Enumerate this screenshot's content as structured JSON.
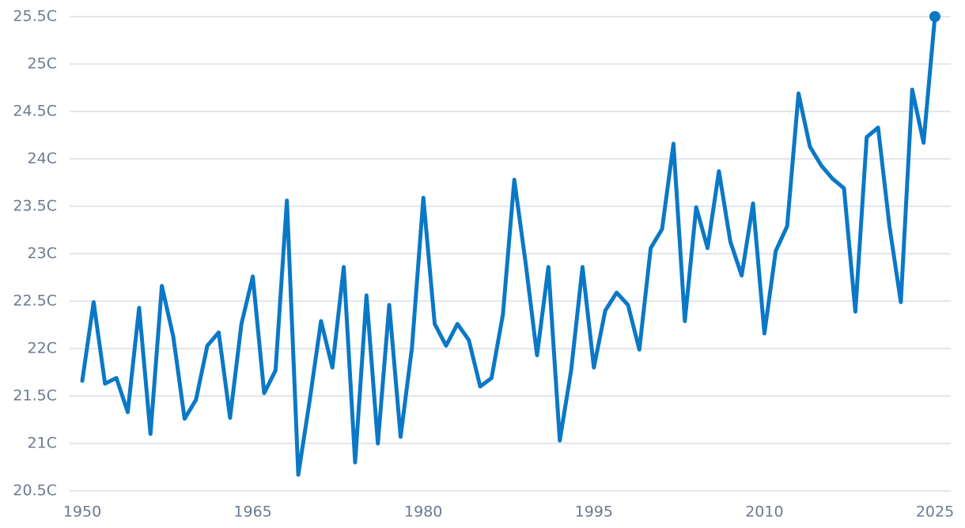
{
  "chart_data": {
    "type": "line",
    "x": [
      1950,
      1951,
      1952,
      1953,
      1954,
      1955,
      1956,
      1957,
      1958,
      1959,
      1960,
      1961,
      1962,
      1963,
      1964,
      1965,
      1966,
      1967,
      1968,
      1969,
      1970,
      1971,
      1972,
      1973,
      1974,
      1975,
      1976,
      1977,
      1978,
      1979,
      1980,
      1981,
      1982,
      1983,
      1984,
      1985,
      1986,
      1987,
      1988,
      1989,
      1990,
      1991,
      1992,
      1993,
      1994,
      1995,
      1996,
      1997,
      1998,
      1999,
      2000,
      2001,
      2002,
      2003,
      2004,
      2005,
      2006,
      2007,
      2008,
      2009,
      2010,
      2011,
      2012,
      2013,
      2014,
      2015,
      2016,
      2017,
      2018,
      2019,
      2020,
      2021,
      2022,
      2023,
      2024,
      2025
    ],
    "values": [
      21.66,
      22.49,
      21.63,
      21.69,
      21.33,
      22.43,
      21.1,
      22.66,
      22.13,
      21.26,
      21.46,
      22.03,
      22.17,
      21.27,
      22.26,
      22.76,
      21.53,
      21.77,
      23.56,
      20.67,
      21.45,
      22.29,
      21.8,
      22.86,
      20.8,
      22.56,
      21.0,
      22.46,
      21.07,
      22.01,
      23.59,
      22.26,
      22.03,
      22.26,
      22.09,
      21.6,
      21.69,
      22.36,
      23.78,
      22.9,
      21.93,
      22.86,
      21.03,
      21.77,
      22.86,
      21.8,
      22.4,
      22.59,
      22.46,
      21.99,
      23.06,
      23.26,
      24.16,
      22.29,
      23.49,
      23.06,
      23.87,
      23.13,
      22.77,
      23.53,
      22.16,
      23.03,
      23.29,
      24.69,
      24.13,
      23.93,
      23.79,
      23.69,
      22.39,
      24.23,
      24.33,
      23.29,
      22.49,
      24.73,
      24.17,
      25.5
    ],
    "color": "#0b78c6",
    "end_marker": true,
    "xlim": [
      1950,
      2025
    ],
    "xticks": [
      1950,
      1965,
      1980,
      1995,
      2010,
      2025
    ],
    "ylim": [
      20.5,
      25.5
    ],
    "yticks": [
      {
        "value": 20.5,
        "label": "20.5C"
      },
      {
        "value": 21,
        "label": "21C"
      },
      {
        "value": 21.5,
        "label": "21.5C"
      },
      {
        "value": 22,
        "label": "22C"
      },
      {
        "value": 22.5,
        "label": "22.5C"
      },
      {
        "value": 23,
        "label": "23C"
      },
      {
        "value": 23.5,
        "label": "23.5C"
      },
      {
        "value": 24,
        "label": "24C"
      },
      {
        "value": 24.5,
        "label": "24.5C"
      },
      {
        "value": 25,
        "label": "25C"
      },
      {
        "value": 25.5,
        "label": "25.5C"
      }
    ],
    "grid": true
  }
}
